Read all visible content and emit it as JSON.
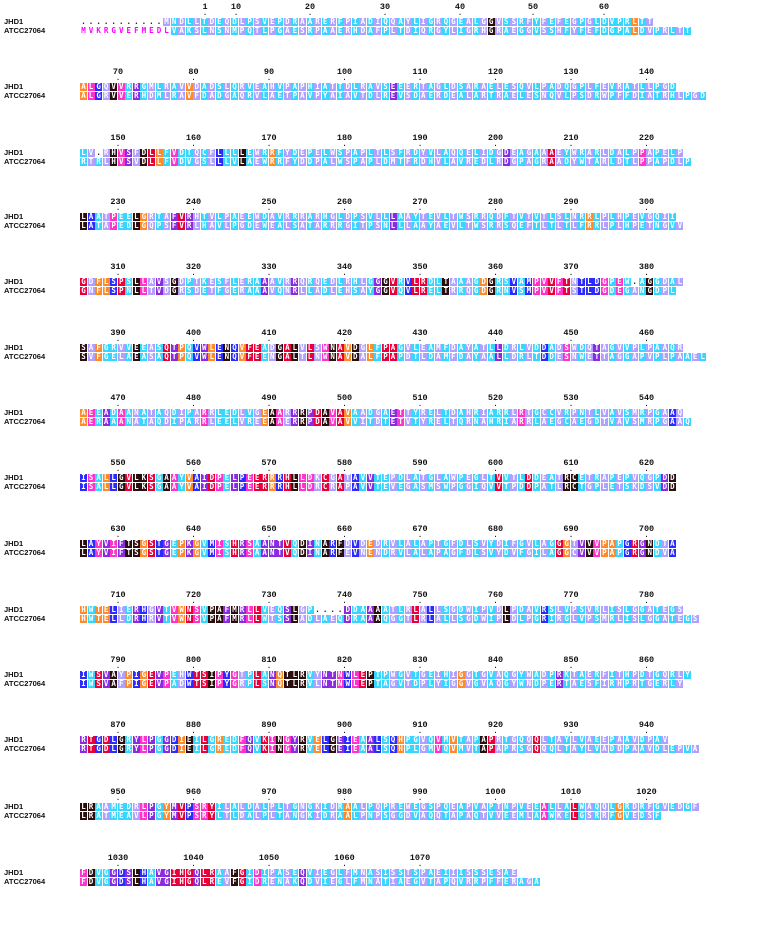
{
  "sequences": [
    {
      "name": "JHD1",
      "lines": [
        "...........MNDLLTDEQDLPSVEPDRAARERFPIADIQQAYLIGRQGEALGGVSSRFYFEFEGPGLDVPRLTT",
        "ALGQVVRRGMLRAVVDADSLQRVEAHVPAPHIATTDLRAVSEEERTAGLDSARAELESQVLPADQGPLFEVRATLLPGD",
        "LV.RHVSFDLLFVDTQCFLLLLEWRRFYDEPELWSPAPLTLSFRDYVLAQQELIDGDEAGAAAEYWRARLDALPPAPELP",
        "LAATPEELGRTAFVRHTVLPAEEWDAVRRRARHGLDPSVLLLAAYTEVLTWSRRQDFTVTVTLSLNRRLPLHPEVGQII",
        "GDFLSPSLLAVSGDPTKESFLERAAAVRRQRQEDLRHLGGGVRVLRDLTAAAGDGRSVAMPVVFTNTLDGPEW.AGGDAL",
        "SAFGRVVEEASQTPQVWLENQVFEADGALVLSWNAVDGLFPAGVLEAMFDAYATLLDRLVDDADSWDQTAGVVPLPAAQR",
        "AEEADAANATAQDIPARRLEDLVGEAARRRPDAVAVAADGAETTYRELTDAHRIARRLRTGCCVRPNTLVAVSMRPGAAQ",
        "ISALLGVLKSGAAYVAIDPELPEERRRHLLDKCGATAVVTEPDLATGLAWPEGLTVVTLDDEATRCETRAPEPVQGPDD",
        "LAYVIFTSGSTGEPKGVMISHRSAANTVQDINARFDVDEDRVLALAPTGFDLSVYDIFGVLAGGGTVVVPAPGRGNDTA",
        "HWTELIERHGVTVWNSVPAFMRLLVEQSLGP....DDAAAATLRLALLSGDWIPVDLPDAVRSLVPSVRLISLGGATEGS",
        "IWSVAYPIGEVPEHWTSIPYGTPLANQTLRVYNTNWLEPTPWGVTGEIHIGGTGVAQGYWADPRKTAERFITHPDTGQRLY",
        "RTGDLGRYLPGGDIEILGREDFQVKINGYRVELGEIEAALSQHPGVQVMVTAPAPRTGQQQLTAYLVAEEPAAVDPAV",
        "LRAAMEDRLPGYMVPSRYILALDALPLTGNGKIDRAALPQPREWEGSPQEAPVAPTNPVEEALLALWAQQLGRDRFGVEDGF",
        "FDVGGDSLHAVGIHGQLRAAFGIDIPASEQVIEGLFMNASISSTSPAEIIISSSESAE"
      ]
    },
    {
      "name": "ATCC27064",
      "lines": [
        "MVKRGVEFMEDLVAKSLNSNMPQTLPGAESRPAAERHDAFPLTDIQRGYLIGRHGRAEGGVSSHFYFEFDGPALDVPRLTT",
        "ALGRVVERHDMLRAVFDADGAQRVLAETPAVPYAIAVTDLREVSDAERDEALARTRAELESNQVLPSDRWPFFDIATRHLPGD",
        "RTRLHVSVDLLFVDVGSLLLVLAEWRRFYDDPALWSPAPLDMTFRDHVLAVREDLRDGPAGRAADYWTARLDTLPPAPDLP",
        "LATAPEDLGQPSFVRLHAVLPGDEWEALSATARRRGITPSNLLLAAYAEVLTWSRRSQEFTLTLTLFRRLPLHPETNGVV",
        "GNFLSPNLLTVDGRSDETFGERAAAVQNRLLADLEHSAYGGVQVLRELTRRQGDGRNVSMPVVFTSTLDGDEGANGDPL",
        "SVFGELAEASAQTPQVWLENQVFEENGALTLNWNAVDALFPAPDTLDAMFDAYAALLDRLTDDESNWETTAGGAPVPLPAAEL",
        "AERAAANATAQDIPARRLEELVREEAAERRPDAVAVVITDTETVTYRELTQRNAHRIARRLAEGCAEGDTVAVSMRPGAAQ",
        "ISALLGVLKSGAAYVAIDPELPEERRRHLLDRCRAPAVVTEVEGASMSWPGGIQVVTPDDPATLRCTGPLETSKDSVDD",
        "LAYVIFTSGSTGEPKGVMISHRSAANTVQDINARFEVNENDRVLALAPAGFDLSVYDVFGILAGGCVVVPAPGRGNDVA",
        "HWTELLDRHRVTVWNSVPAFMRLLWTSSLADLAEQDRAAAQGGTLRLALLSGDWIPLDLPGRIRGLVPSMRLISLGGATEGS",
        "IWSVAFPIGEVPADWTSIPYGRPLSNQTLRVLNTNWLEPTAGVTDPLYIGGVGVAQGYWNDPERTAESFIRHPRTGERLY",
        "RTGDLGRYLPGGDIEILGREDFQVKINGYRVELGEIEAALSQHPLGMVQVMVTAPAPRSGQQQLTAYLVADDPAAVDLEPVA",
        "LRATMEAVLPGYMVPSRYLTLDALPLTANGKIDRAALPNPSGGDVAQQTAPAQTVVEEMLAAWKELGSRRFGVEDSF",
        "FDVGGDSLHAVGIHGQLREVFGIDRENAKQDVIEGLFMNATIAEGVTAPQVRRPFFERAGA"
      ]
    }
  ],
  "ruler_labels": [
    [
      "1",
      "10",
      "20",
      "30",
      "40",
      "50",
      "60"
    ],
    [
      "70",
      "80",
      "90",
      "100",
      "110",
      "120",
      "130",
      "140"
    ],
    [
      "150",
      "160",
      "170",
      "180",
      "190",
      "200",
      "210",
      "220"
    ],
    [
      "230",
      "240",
      "250",
      "260",
      "270",
      "280",
      "290",
      "300"
    ],
    [
      "310",
      "320",
      "330",
      "340",
      "350",
      "360",
      "370",
      "380"
    ],
    [
      "390",
      "400",
      "410",
      "420",
      "430",
      "440",
      "450",
      "460"
    ],
    [
      "470",
      "480",
      "490",
      "500",
      "510",
      "520",
      "530",
      "540"
    ],
    [
      "550",
      "560",
      "570",
      "580",
      "590",
      "600",
      "610",
      "620"
    ],
    [
      "630",
      "640",
      "650",
      "660",
      "670",
      "680",
      "690",
      "700"
    ],
    [
      "710",
      "720",
      "730",
      "740",
      "750",
      "760",
      "770",
      "780"
    ],
    [
      "790",
      "800",
      "810",
      "820",
      "830",
      "840",
      "850",
      "860"
    ],
    [
      "870",
      "880",
      "890",
      "900",
      "910",
      "920",
      "930",
      "940"
    ],
    [
      "950",
      "960",
      "970",
      "980",
      "990",
      "1000",
      "1010",
      "1020"
    ],
    [
      "1030",
      "1040",
      "1050",
      "1060",
      "1070"
    ]
  ],
  "colors": {
    "identical": "#1a0f4a",
    "pink": "#ff33cc",
    "red": "#e8003a",
    "orange": "#ff8a2a",
    "blue": "#2b2bff",
    "cyan": "#36d6ff",
    "purple": "#8a2be2",
    "dark": "#2a0d0d",
    "magenta_text": "#ff00ff"
  }
}
